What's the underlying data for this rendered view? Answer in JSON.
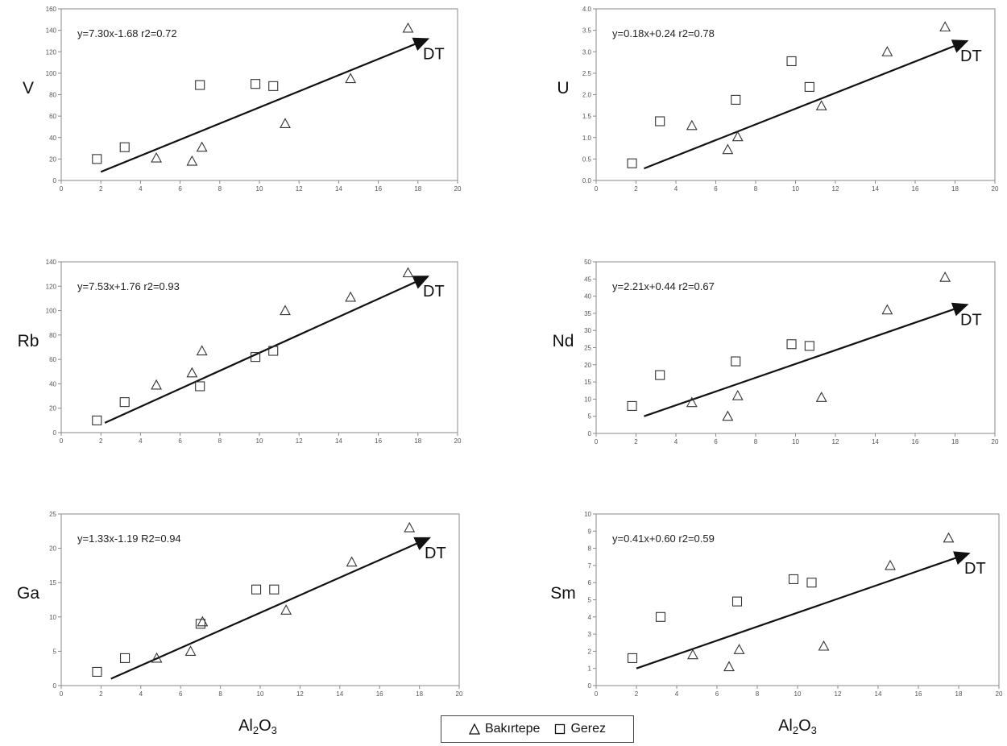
{
  "legend": [
    {
      "marker": "triangle",
      "label": "Bakırtepe"
    },
    {
      "marker": "square",
      "label": "Gerez"
    }
  ],
  "shared_xlabel": {
    "main": "Al",
    "sub1": "2",
    "mid": "O",
    "sub2": "3"
  },
  "chart_data": [
    {
      "type": "scatter",
      "ylabel": "V",
      "equation": "y=7.30x-1.68  r2=0.72",
      "trend_label": "DT",
      "xlim": [
        0,
        20
      ],
      "xticks": [
        0,
        2,
        4,
        6,
        8,
        10,
        12,
        14,
        16,
        18,
        20
      ],
      "ylim": [
        0,
        160
      ],
      "yticks": [
        0,
        20,
        40,
        60,
        80,
        100,
        120,
        140,
        160
      ],
      "trend_arrow": {
        "from": [
          2,
          8
        ],
        "to": [
          18.5,
          132
        ]
      },
      "series": [
        {
          "name": "Bakırtepe",
          "marker": "triangle",
          "points": [
            [
              4.8,
              21
            ],
            [
              6.6,
              18
            ],
            [
              7.1,
              31
            ],
            [
              11.3,
              53
            ],
            [
              14.6,
              95
            ],
            [
              17.5,
              142
            ]
          ]
        },
        {
          "name": "Gerez",
          "marker": "square",
          "points": [
            [
              1.8,
              20
            ],
            [
              3.2,
              31
            ],
            [
              7.0,
              89
            ],
            [
              9.8,
              90
            ],
            [
              10.7,
              88
            ]
          ]
        }
      ]
    },
    {
      "type": "scatter",
      "ylabel": "U",
      "equation": "y=0.18x+0.24  r2=0.78",
      "trend_label": "DT",
      "xlim": [
        0,
        20
      ],
      "xticks": [
        0,
        2,
        4,
        6,
        8,
        10,
        12,
        14,
        16,
        18,
        20
      ],
      "ylim": [
        0,
        4
      ],
      "yticks": [
        0,
        0.5,
        1,
        1.5,
        2,
        2.5,
        3,
        3.5,
        4
      ],
      "ytick_labels": [
        "0.0",
        "0.5",
        "1.0",
        "1.5",
        "2.0",
        "2.5",
        "3.0",
        "3.5",
        "4.0"
      ],
      "trend_arrow": {
        "from": [
          2.4,
          0.28
        ],
        "to": [
          18.6,
          3.25
        ]
      },
      "series": [
        {
          "name": "Bakırtepe",
          "marker": "triangle",
          "points": [
            [
              4.8,
              1.28
            ],
            [
              6.6,
              0.72
            ],
            [
              7.1,
              1.02
            ],
            [
              11.3,
              1.74
            ],
            [
              14.6,
              3.0
            ],
            [
              17.5,
              3.58
            ]
          ]
        },
        {
          "name": "Gerez",
          "marker": "square",
          "points": [
            [
              1.8,
              0.4
            ],
            [
              3.2,
              1.38
            ],
            [
              7.0,
              1.88
            ],
            [
              9.8,
              2.78
            ],
            [
              10.7,
              2.18
            ]
          ]
        }
      ]
    },
    {
      "type": "scatter",
      "ylabel": "Rb",
      "equation": "y=7.53x+1.76  r2=0.93",
      "trend_label": "DT",
      "xlim": [
        0,
        20
      ],
      "xticks": [
        0,
        2,
        4,
        6,
        8,
        10,
        12,
        14,
        16,
        18,
        20
      ],
      "ylim": [
        0,
        140
      ],
      "yticks": [
        0,
        20,
        40,
        60,
        80,
        100,
        120,
        140
      ],
      "trend_arrow": {
        "from": [
          2.2,
          8
        ],
        "to": [
          18.5,
          128
        ]
      },
      "series": [
        {
          "name": "Bakırtepe",
          "marker": "triangle",
          "points": [
            [
              4.8,
              39
            ],
            [
              6.6,
              49
            ],
            [
              7.1,
              67
            ],
            [
              11.3,
              100
            ],
            [
              14.6,
              111
            ],
            [
              17.5,
              131
            ]
          ]
        },
        {
          "name": "Gerez",
          "marker": "square",
          "points": [
            [
              1.8,
              10
            ],
            [
              3.2,
              25
            ],
            [
              7.0,
              38
            ],
            [
              9.8,
              62
            ],
            [
              10.7,
              67
            ]
          ]
        }
      ]
    },
    {
      "type": "scatter",
      "ylabel": "Nd",
      "equation": "y=2.21x+0.44  r2=0.67",
      "trend_label": "DT",
      "xlim": [
        0,
        20
      ],
      "xticks": [
        0,
        2,
        4,
        6,
        8,
        10,
        12,
        14,
        16,
        18,
        20
      ],
      "ylim": [
        0,
        50
      ],
      "yticks": [
        0,
        5,
        10,
        15,
        20,
        25,
        30,
        35,
        40,
        45,
        50
      ],
      "trend_arrow": {
        "from": [
          2.4,
          5
        ],
        "to": [
          18.6,
          37.5
        ]
      },
      "series": [
        {
          "name": "Bakırtepe",
          "marker": "triangle",
          "points": [
            [
              4.8,
              9
            ],
            [
              6.6,
              5
            ],
            [
              7.1,
              11
            ],
            [
              11.3,
              10.5
            ],
            [
              14.6,
              36
            ],
            [
              17.5,
              45.5
            ]
          ]
        },
        {
          "name": "Gerez",
          "marker": "square",
          "points": [
            [
              1.8,
              8
            ],
            [
              3.2,
              17
            ],
            [
              7.0,
              21
            ],
            [
              9.8,
              26
            ],
            [
              10.7,
              25.5
            ]
          ]
        }
      ]
    },
    {
      "type": "scatter",
      "ylabel": "Ga",
      "equation": "y=1.33x-1.19  R2=0.94",
      "trend_label": "DT",
      "xlim": [
        0,
        20
      ],
      "xticks": [
        0,
        2,
        4,
        6,
        8,
        10,
        12,
        14,
        16,
        18,
        20
      ],
      "ylim": [
        0,
        25
      ],
      "yticks": [
        0,
        5,
        10,
        15,
        20,
        25
      ],
      "trend_arrow": {
        "from": [
          2.5,
          1
        ],
        "to": [
          18.5,
          21.5
        ]
      },
      "series": [
        {
          "name": "Bakırtepe",
          "marker": "triangle",
          "points": [
            [
              4.8,
              4
            ],
            [
              6.5,
              5
            ],
            [
              7.1,
              9.3
            ],
            [
              11.3,
              11
            ],
            [
              14.6,
              18
            ],
            [
              17.5,
              23
            ]
          ]
        },
        {
          "name": "Gerez",
          "marker": "square",
          "points": [
            [
              1.8,
              2
            ],
            [
              3.2,
              4
            ],
            [
              7.0,
              9
            ],
            [
              9.8,
              14
            ],
            [
              10.7,
              14
            ]
          ]
        }
      ]
    },
    {
      "type": "scatter",
      "ylabel": "Sm",
      "equation": "y=0.41x+0.60  r2=0.59",
      "trend_label": "DT",
      "xlim": [
        0,
        20
      ],
      "xticks": [
        0,
        2,
        4,
        6,
        8,
        10,
        12,
        14,
        16,
        18,
        20
      ],
      "ylim": [
        0,
        10
      ],
      "yticks": [
        0,
        1,
        2,
        3,
        4,
        5,
        6,
        7,
        8,
        9,
        10
      ],
      "trend_arrow": {
        "from": [
          2.0,
          1
        ],
        "to": [
          18.5,
          7.7
        ]
      },
      "series": [
        {
          "name": "Bakırtepe",
          "marker": "triangle",
          "points": [
            [
              4.8,
              1.8
            ],
            [
              6.6,
              1.1
            ],
            [
              7.1,
              2.1
            ],
            [
              11.3,
              2.3
            ],
            [
              14.6,
              7.0
            ],
            [
              17.5,
              8.6
            ]
          ]
        },
        {
          "name": "Gerez",
          "marker": "square",
          "points": [
            [
              1.8,
              1.6
            ],
            [
              3.2,
              4.0
            ],
            [
              7.0,
              4.9
            ],
            [
              9.8,
              6.2
            ],
            [
              10.7,
              6.0
            ]
          ]
        }
      ]
    }
  ]
}
